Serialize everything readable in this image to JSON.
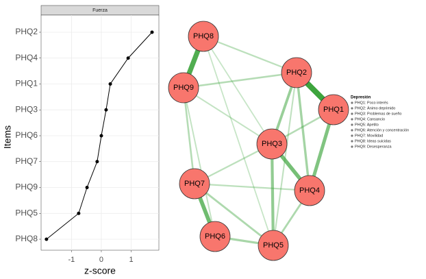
{
  "chart_data": {
    "type": "line",
    "facet": "Fuerza",
    "categories": [
      "PHQ2",
      "PHQ4",
      "PHQ1",
      "PHQ3",
      "PHQ6",
      "PHQ7",
      "PHQ9",
      "PHQ5",
      "PHQ8"
    ],
    "values": [
      1.7,
      0.9,
      0.3,
      0.16,
      0.0,
      -0.14,
      -0.48,
      -0.76,
      -1.84
    ],
    "xlabel": "z-score",
    "ylabel": "Items",
    "xlim": [
      -2.02,
      1.93
    ],
    "xticks": [
      -1,
      0,
      1
    ],
    "color": "#000000",
    "grid": true
  },
  "network": {
    "nodes": [
      "PHQ1",
      "PHQ2",
      "PHQ3",
      "PHQ4",
      "PHQ5",
      "PHQ6",
      "PHQ7",
      "PHQ8",
      "PHQ9"
    ],
    "node_color": "#f8766d",
    "edge_color": "#3da43d",
    "edges": [
      {
        "from": 7,
        "to": 8,
        "weight": 0.39
      },
      {
        "from": 0,
        "to": 1,
        "weight": 0.45
      },
      {
        "from": 2,
        "to": 3,
        "weight": 0.28
      },
      {
        "from": 5,
        "to": 6,
        "weight": 0.3
      },
      {
        "from": 0,
        "to": 3,
        "weight": 0.25
      },
      {
        "from": 2,
        "to": 4,
        "weight": 0.2
      },
      {
        "from": 1,
        "to": 2,
        "weight": 0.18
      },
      {
        "from": 1,
        "to": 3,
        "weight": 0.15
      },
      {
        "from": 6,
        "to": 4,
        "weight": 0.12
      },
      {
        "from": 5,
        "to": 4,
        "weight": 0.14
      },
      {
        "from": 3,
        "to": 4,
        "weight": 0.12
      },
      {
        "from": 8,
        "to": 1,
        "weight": 0.1
      },
      {
        "from": 8,
        "to": 6,
        "weight": 0.1
      },
      {
        "from": 7,
        "to": 1,
        "weight": 0.08
      },
      {
        "from": 2,
        "to": 6,
        "weight": 0.08
      },
      {
        "from": 6,
        "to": 3,
        "weight": 0.08
      },
      {
        "from": 0,
        "to": 2,
        "weight": 0.1
      },
      {
        "from": 8,
        "to": 2,
        "weight": 0.06
      },
      {
        "from": 7,
        "to": 2,
        "weight": 0.05
      },
      {
        "from": 7,
        "to": 4,
        "weight": 0.05
      },
      {
        "from": 8,
        "to": 5,
        "weight": 0.06
      },
      {
        "from": 1,
        "to": 4,
        "weight": 0.07
      }
    ],
    "legend": {
      "title": "Depresión",
      "items": [
        "PHQ1: Poco interés",
        "PHQ2: Ánimo deprimido",
        "PHQ3: Problemas de sueño",
        "PHQ4: Cansancio",
        "PHQ5: Apetito",
        "PHQ6: Atención y concentración",
        "PHQ7: Movilidad",
        "PHQ8: Ideas suicidas",
        "PHQ9: Desesperanza"
      ]
    }
  }
}
